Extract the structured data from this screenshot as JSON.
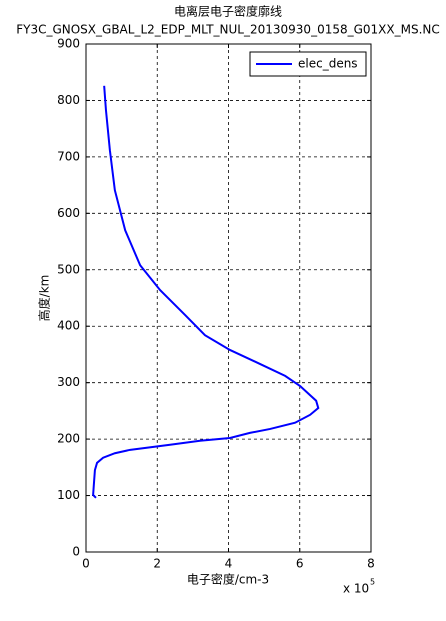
{
  "chart_data": {
    "type": "line",
    "title": "电离层电子密度廓线",
    "subtitle": "FY3C_GNOSX_GBAL_L2_EDP_MLT_NUL_20130930_0158_G01XX_MS.NC",
    "x_label": "电子密度/cm-3",
    "y_label": "高度/km",
    "x_multiplier": {
      "base": "x 10",
      "exponent": "5"
    },
    "x": [
      0.28,
      0.2,
      0.22,
      0.25,
      0.31,
      0.48,
      0.81,
      1.24,
      2.36,
      3.2,
      4.04,
      4.6,
      5.17,
      5.87,
      6.29,
      6.52,
      6.46,
      6.01,
      5.59,
      4.89,
      4.04,
      3.34,
      2.78,
      2.08,
      1.52,
      1.1,
      0.81,
      0.67,
      0.56,
      0.51
    ],
    "series": [
      {
        "name": "elec_dens",
        "color": "#0000ff",
        "values": [
          96,
          101,
          119,
          145,
          158,
          167,
          175,
          181,
          190,
          197,
          202,
          211,
          218,
          229,
          243,
          255,
          268,
          294,
          312,
          333,
          358,
          384,
          420,
          464,
          508,
          570,
          641,
          712,
          783,
          826
        ]
      }
    ],
    "xlim": [
      0,
      8
    ],
    "xticks": [
      0,
      2,
      4,
      6,
      8
    ],
    "ylim": [
      0,
      900
    ],
    "yticks": [
      0,
      100,
      200,
      300,
      400,
      500,
      600,
      700,
      800,
      900
    ],
    "grid": true,
    "legend": "top-right"
  }
}
